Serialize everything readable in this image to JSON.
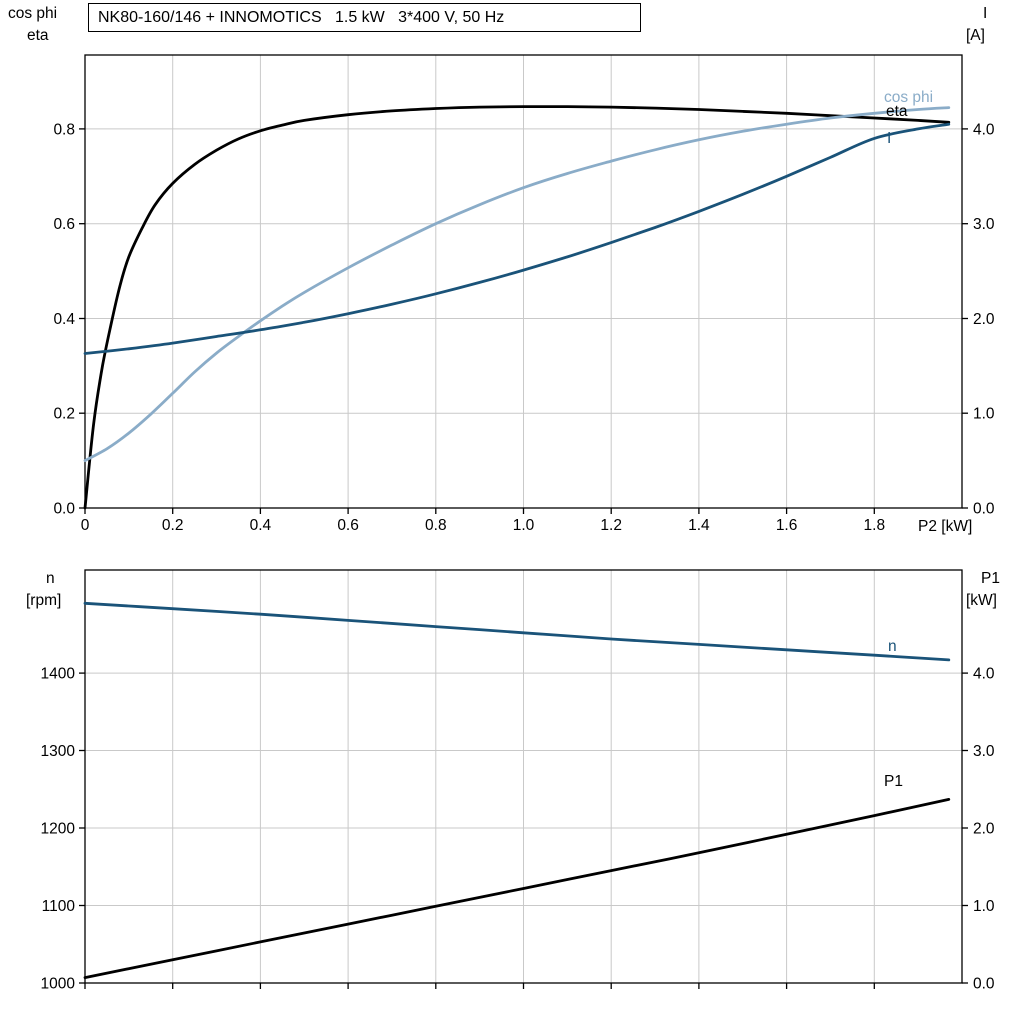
{
  "header": {
    "title": "NK80-160/146 + INNOMOTICS   1.5 kW   3*400 V, 50 Hz"
  },
  "top_chart": {
    "y_left_title_line1": "cos phi",
    "y_left_title_line2": "eta",
    "y_right_title_line1": "I",
    "y_right_title_line2": "[A]",
    "x_title": "P2 [kW]"
  },
  "bottom_chart": {
    "y_left_title_line1": "n",
    "y_left_title_line2": "[rpm]",
    "y_right_title_line1": "P1",
    "y_right_title_line2": "[kW]"
  },
  "colors": {
    "eta_curve": "#000000",
    "cos_phi_curve": "#8aacc8",
    "current_curve": "#1a5379",
    "speed_curve": "#1a5379",
    "p1_curve": "#000000",
    "grid": "#c9c9c9"
  },
  "chart_data": [
    {
      "type": "line",
      "title": "NK80-160/146 + INNOMOTICS   1.5 kW   3*400 V, 50 Hz",
      "xlabel": "P2 [kW]",
      "grid": true,
      "legend_position": "inline-right",
      "x": {
        "min": 0,
        "max": 2.0,
        "ticks": [
          {
            "v": 0,
            "label": "0"
          },
          {
            "v": 0.2,
            "label": "0.2"
          },
          {
            "v": 0.4,
            "label": "0.4"
          },
          {
            "v": 0.6,
            "label": "0.6"
          },
          {
            "v": 0.8,
            "label": "0.8"
          },
          {
            "v": 1.0,
            "label": "1.0"
          },
          {
            "v": 1.2,
            "label": "1.2"
          },
          {
            "v": 1.4,
            "label": "1.4"
          },
          {
            "v": 1.6,
            "label": "1.6"
          },
          {
            "v": 1.8,
            "label": "1.8"
          }
        ]
      },
      "y_left": {
        "label": "cos phi / eta",
        "min": 0,
        "max": 0.956,
        "ticks": [
          {
            "v": 0.0,
            "label": "0.0"
          },
          {
            "v": 0.2,
            "label": "0.2"
          },
          {
            "v": 0.4,
            "label": "0.4"
          },
          {
            "v": 0.6,
            "label": "0.6"
          },
          {
            "v": 0.8,
            "label": "0.8"
          }
        ]
      },
      "y_right": {
        "label": "I [A]",
        "min": 0,
        "max": 4.78,
        "ticks": [
          {
            "v": 0.0,
            "label": "0.0"
          },
          {
            "v": 1.0,
            "label": "1.0"
          },
          {
            "v": 2.0,
            "label": "2.0"
          },
          {
            "v": 3.0,
            "label": "3.0"
          },
          {
            "v": 4.0,
            "label": "4.0"
          }
        ]
      },
      "series": [
        {
          "name": "eta",
          "axis": "left",
          "color": "#000000",
          "points": [
            [
              0,
              0
            ],
            [
              0.02,
              0.18
            ],
            [
              0.04,
              0.3
            ],
            [
              0.06,
              0.39
            ],
            [
              0.08,
              0.47
            ],
            [
              0.1,
              0.53
            ],
            [
              0.13,
              0.59
            ],
            [
              0.16,
              0.64
            ],
            [
              0.2,
              0.685
            ],
            [
              0.25,
              0.725
            ],
            [
              0.3,
              0.755
            ],
            [
              0.35,
              0.779
            ],
            [
              0.4,
              0.796
            ],
            [
              0.45,
              0.808
            ],
            [
              0.5,
              0.818
            ],
            [
              0.6,
              0.83
            ],
            [
              0.7,
              0.838
            ],
            [
              0.8,
              0.843
            ],
            [
              0.9,
              0.846
            ],
            [
              1.0,
              0.847
            ],
            [
              1.1,
              0.847
            ],
            [
              1.2,
              0.846
            ],
            [
              1.3,
              0.844
            ],
            [
              1.4,
              0.841
            ],
            [
              1.5,
              0.837
            ],
            [
              1.6,
              0.833
            ],
            [
              1.7,
              0.828
            ],
            [
              1.8,
              0.823
            ],
            [
              1.9,
              0.818
            ],
            [
              1.97,
              0.814
            ]
          ]
        },
        {
          "name": "cos phi",
          "axis": "left",
          "color": "#8aacc8",
          "points": [
            [
              0,
              0.1
            ],
            [
              0.05,
              0.125
            ],
            [
              0.1,
              0.158
            ],
            [
              0.15,
              0.198
            ],
            [
              0.2,
              0.242
            ],
            [
              0.25,
              0.287
            ],
            [
              0.3,
              0.327
            ],
            [
              0.35,
              0.362
            ],
            [
              0.4,
              0.395
            ],
            [
              0.45,
              0.426
            ],
            [
              0.5,
              0.455
            ],
            [
              0.6,
              0.507
            ],
            [
              0.7,
              0.555
            ],
            [
              0.8,
              0.6
            ],
            [
              0.9,
              0.64
            ],
            [
              1.0,
              0.676
            ],
            [
              1.1,
              0.706
            ],
            [
              1.2,
              0.732
            ],
            [
              1.3,
              0.756
            ],
            [
              1.4,
              0.777
            ],
            [
              1.5,
              0.795
            ],
            [
              1.6,
              0.81
            ],
            [
              1.7,
              0.823
            ],
            [
              1.8,
              0.833
            ],
            [
              1.9,
              0.841
            ],
            [
              1.97,
              0.845
            ]
          ]
        },
        {
          "name": "I",
          "axis": "right",
          "color": "#1a5379",
          "points": [
            [
              0,
              1.63
            ],
            [
              0.1,
              1.68
            ],
            [
              0.2,
              1.74
            ],
            [
              0.3,
              1.81
            ],
            [
              0.4,
              1.88
            ],
            [
              0.5,
              1.96
            ],
            [
              0.6,
              2.05
            ],
            [
              0.7,
              2.15
            ],
            [
              0.8,
              2.26
            ],
            [
              0.9,
              2.38
            ],
            [
              1.0,
              2.51
            ],
            [
              1.1,
              2.65
            ],
            [
              1.2,
              2.8
            ],
            [
              1.3,
              2.96
            ],
            [
              1.4,
              3.13
            ],
            [
              1.5,
              3.31
            ],
            [
              1.6,
              3.5
            ],
            [
              1.7,
              3.7
            ],
            [
              1.8,
              3.9
            ],
            [
              1.9,
              4.0
            ],
            [
              1.97,
              4.05
            ]
          ]
        }
      ]
    },
    {
      "type": "line",
      "title": "",
      "xlabel": "",
      "grid": true,
      "legend_position": "inline-right",
      "x": {
        "min": 0,
        "max": 2.0,
        "ticks": [
          {
            "v": 0,
            "label": null
          },
          {
            "v": 0.2,
            "label": null
          },
          {
            "v": 0.4,
            "label": null
          },
          {
            "v": 0.6,
            "label": null
          },
          {
            "v": 0.8,
            "label": null
          },
          {
            "v": 1.0,
            "label": null
          },
          {
            "v": 1.2,
            "label": null
          },
          {
            "v": 1.4,
            "label": null
          },
          {
            "v": 1.6,
            "label": null
          },
          {
            "v": 1.8,
            "label": null
          }
        ]
      },
      "y_left": {
        "label": "n [rpm]",
        "min": 1000,
        "max": 1533,
        "ticks": [
          {
            "v": 1000,
            "label": "1000"
          },
          {
            "v": 1100,
            "label": "1100"
          },
          {
            "v": 1200,
            "label": "1200"
          },
          {
            "v": 1300,
            "label": "1300"
          },
          {
            "v": 1400,
            "label": "1400"
          }
        ]
      },
      "y_right": {
        "label": "P1 [kW]",
        "min": 0,
        "max": 5.33,
        "ticks": [
          {
            "v": 0.0,
            "label": "0.0"
          },
          {
            "v": 1.0,
            "label": "1.0"
          },
          {
            "v": 2.0,
            "label": "2.0"
          },
          {
            "v": 3.0,
            "label": "3.0"
          },
          {
            "v": 4.0,
            "label": "4.0"
          }
        ]
      },
      "series": [
        {
          "name": "n",
          "axis": "left",
          "color": "#1a5379",
          "points": [
            [
              0,
              1490
            ],
            [
              0.2,
              1483
            ],
            [
              0.4,
              1476
            ],
            [
              0.6,
              1468
            ],
            [
              0.8,
              1460
            ],
            [
              1.0,
              1452
            ],
            [
              1.2,
              1444
            ],
            [
              1.4,
              1437
            ],
            [
              1.6,
              1430
            ],
            [
              1.8,
              1423
            ],
            [
              1.97,
              1417
            ]
          ]
        },
        {
          "name": "P1",
          "axis": "right",
          "color": "#000000",
          "points": [
            [
              0,
              0.07
            ],
            [
              0.2,
              0.3
            ],
            [
              0.4,
              0.53
            ],
            [
              0.6,
              0.76
            ],
            [
              0.8,
              0.99
            ],
            [
              1.0,
              1.22
            ],
            [
              1.2,
              1.45
            ],
            [
              1.4,
              1.68
            ],
            [
              1.6,
              1.92
            ],
            [
              1.8,
              2.16
            ],
            [
              1.97,
              2.37
            ]
          ]
        }
      ]
    }
  ]
}
